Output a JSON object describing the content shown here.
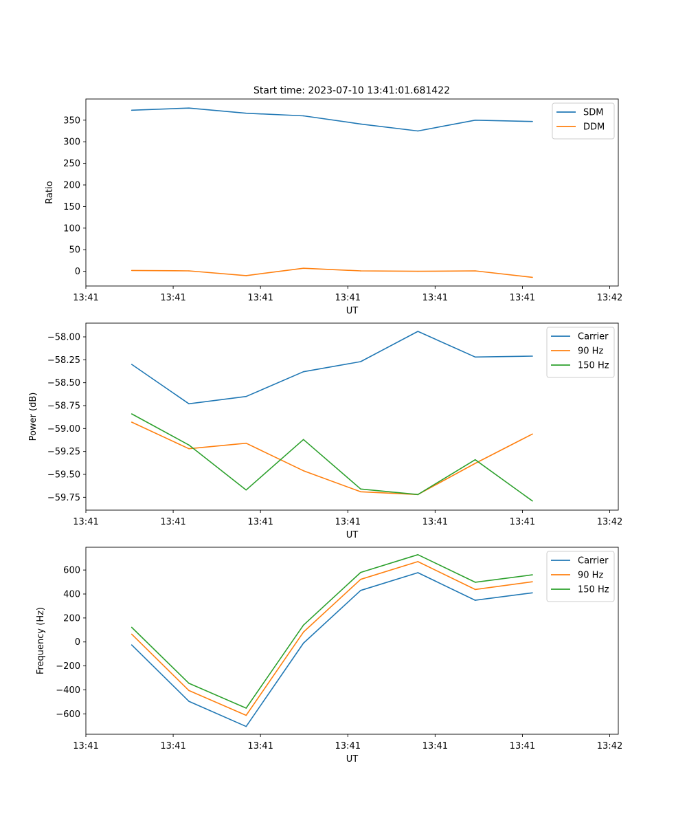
{
  "figure_title": "Start time: 2023-07-10 13:41:01.681422",
  "colors": {
    "blue": "#1f77b4",
    "orange": "#ff7f0e",
    "green": "#2ca02c"
  },
  "chart_data": [
    {
      "type": "line",
      "title": "Start time: 2023-07-10 13:41:01.681422",
      "xlabel": "UT",
      "ylabel": "Ratio",
      "x": [
        1,
        2,
        3,
        4,
        5,
        6,
        7,
        8
      ],
      "xlim": [
        0.2,
        9.5
      ],
      "x_ticks": [
        0.2,
        1.725,
        3.25,
        4.775,
        6.3,
        7.825,
        9.35
      ],
      "x_tick_labels": [
        "13:41",
        "13:41",
        "13:41",
        "13:41",
        "13:41",
        "13:41",
        "13:42"
      ],
      "ylim": [
        -34,
        399
      ],
      "y_ticks": [
        0,
        50,
        100,
        150,
        200,
        250,
        300,
        350
      ],
      "y_tick_labels": [
        "0",
        "50",
        "100",
        "150",
        "200",
        "250",
        "300",
        "350"
      ],
      "series": [
        {
          "name": "SDM",
          "color": "#1f77b4",
          "values": [
            373,
            378,
            366,
            360,
            341,
            325,
            350,
            347
          ]
        },
        {
          "name": "DDM",
          "color": "#ff7f0e",
          "values": [
            2,
            1,
            -10,
            7,
            1,
            0,
            1,
            -14
          ]
        }
      ],
      "legend": "top-right"
    },
    {
      "type": "line",
      "title": "",
      "xlabel": "UT",
      "ylabel": "Power (dB)",
      "x": [
        1,
        2,
        3,
        4,
        5,
        6,
        7,
        8
      ],
      "xlim": [
        0.2,
        9.5
      ],
      "x_ticks": [
        0.2,
        1.725,
        3.25,
        4.775,
        6.3,
        7.825,
        9.35
      ],
      "x_tick_labels": [
        "13:41",
        "13:41",
        "13:41",
        "13:41",
        "13:41",
        "13:41",
        "13:42"
      ],
      "ylim": [
        -59.89,
        -57.85
      ],
      "y_ticks": [
        -59.75,
        -59.5,
        -59.25,
        -59.0,
        -58.75,
        -58.5,
        -58.25,
        -58.0
      ],
      "y_tick_labels": [
        "−59.75",
        "−59.50",
        "−59.25",
        "−59.00",
        "−58.75",
        "−58.50",
        "−58.25",
        "−58.00"
      ],
      "series": [
        {
          "name": "Carrier",
          "color": "#1f77b4",
          "values": [
            -58.3,
            -58.73,
            -58.65,
            -58.38,
            -58.27,
            -57.94,
            -58.22,
            -58.21
          ]
        },
        {
          "name": "90 Hz",
          "color": "#ff7f0e",
          "values": [
            -58.93,
            -59.22,
            -59.16,
            -59.46,
            -59.69,
            -59.72,
            -59.38,
            -59.06
          ]
        },
        {
          "name": "150 Hz",
          "color": "#2ca02c",
          "values": [
            -58.84,
            -59.18,
            -59.67,
            -59.12,
            -59.66,
            -59.72,
            -59.34,
            -59.79
          ]
        }
      ],
      "legend": "top-right"
    },
    {
      "type": "line",
      "title": "",
      "xlabel": "UT",
      "ylabel": "Frequency (Hz)",
      "x": [
        1,
        2,
        3,
        4,
        5,
        6,
        7,
        8
      ],
      "xlim": [
        0.2,
        9.5
      ],
      "x_ticks": [
        0.2,
        1.725,
        3.25,
        4.775,
        6.3,
        7.825,
        9.35
      ],
      "x_tick_labels": [
        "13:41",
        "13:41",
        "13:41",
        "13:41",
        "13:41",
        "13:41",
        "13:42"
      ],
      "ylim": [
        -770,
        790
      ],
      "y_ticks": [
        -600,
        -400,
        -200,
        0,
        200,
        400,
        600
      ],
      "y_tick_labels": [
        "−600",
        "−400",
        "−200",
        "0",
        "200",
        "400",
        "600"
      ],
      "series": [
        {
          "name": "Carrier",
          "color": "#1f77b4",
          "values": [
            -25,
            -495,
            -705,
            -10,
            430,
            578,
            348,
            410
          ]
        },
        {
          "name": "90 Hz",
          "color": "#ff7f0e",
          "values": [
            65,
            -405,
            -612,
            82,
            522,
            670,
            438,
            502
          ]
        },
        {
          "name": "150 Hz",
          "color": "#2ca02c",
          "values": [
            122,
            -345,
            -552,
            140,
            580,
            728,
            498,
            560
          ]
        }
      ],
      "legend": "top-right"
    }
  ]
}
